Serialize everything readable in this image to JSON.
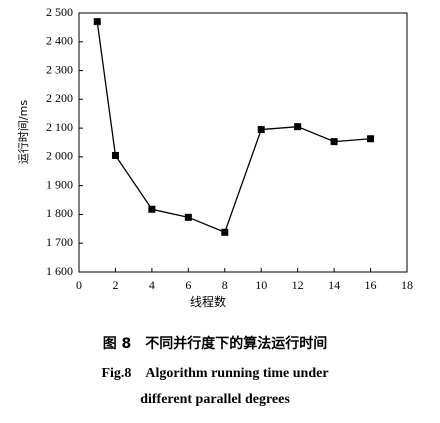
{
  "chart_data": {
    "type": "line",
    "caption_cn": "图 8　不同并行度下的算法运行时间",
    "caption_en": [
      "Fig.8　Algorithm running time under",
      "different parallel degrees"
    ],
    "x_label": "线程数",
    "y_label": "运行时间/ms",
    "x": [
      1,
      2,
      4,
      6,
      8,
      10,
      12,
      14,
      16
    ],
    "series": [
      {
        "color": "#000000",
        "values": [
          2470,
          2005,
          1818,
          1790,
          1738,
          2095,
          2105,
          2053,
          2063
        ]
      }
    ],
    "xlim": [
      0,
      18
    ],
    "xticks": [
      0,
      2,
      4,
      6,
      8,
      10,
      12,
      14,
      16,
      18
    ],
    "ylim": [
      1600,
      2500
    ],
    "yticks": [
      {
        "value": 1600,
        "label": "1 600"
      },
      {
        "value": 1700,
        "label": "1 700"
      },
      {
        "value": 1800,
        "label": "1 800"
      },
      {
        "value": 1900,
        "label": "1 900"
      },
      {
        "value": 2000,
        "label": "2 000"
      },
      {
        "value": 2100,
        "label": "2 100"
      },
      {
        "value": 2200,
        "label": "2 200"
      },
      {
        "value": 2300,
        "label": "2 300"
      },
      {
        "value": 2400,
        "label": "2 400"
      },
      {
        "value": 2500,
        "label": "2 500"
      }
    ],
    "grid": false
  }
}
